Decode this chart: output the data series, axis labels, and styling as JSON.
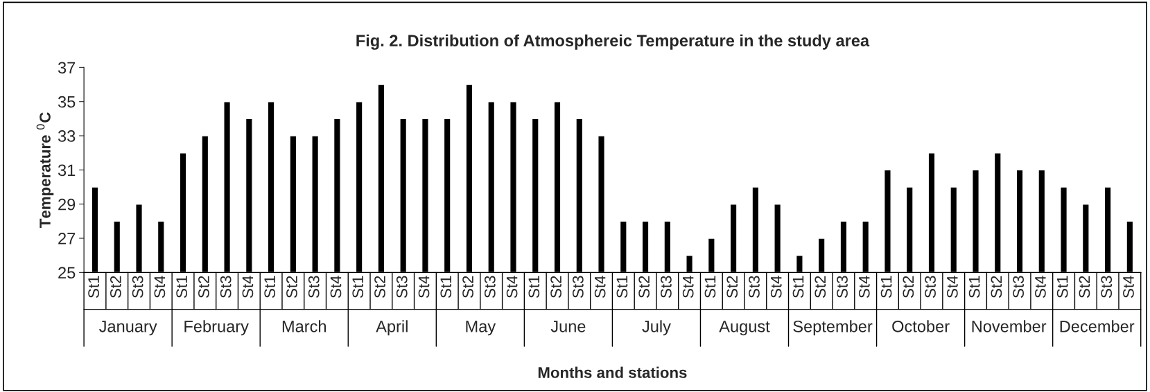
{
  "chart_data": {
    "type": "bar",
    "title": "Fig. 2. Distribution of Atmosphereic Temperature in the study area",
    "xlabel": "Months and stations",
    "ylabel": "Temperature $^{0}$C",
    "categories": [
      "St1",
      "St2",
      "St3",
      "St4",
      "St1",
      "St2",
      "St3",
      "St4",
      "St1",
      "St2",
      "St3",
      "St4",
      "St1",
      "St2",
      "St3",
      "St4",
      "St1",
      "St2",
      "St3",
      "St4",
      "St1",
      "St2",
      "St3",
      "St4",
      "St1",
      "St2",
      "St3",
      "St4",
      "St1",
      "St2",
      "St3",
      "St4",
      "St1",
      "St2",
      "St3",
      "St4",
      "St1",
      "St2",
      "St3",
      "St4",
      "St1",
      "St2",
      "St3",
      "St4",
      "St1",
      "St2",
      "St3",
      "St4"
    ],
    "annotations": [
      "January",
      "February",
      "March",
      "April",
      "May",
      "June",
      "July",
      "August",
      "September",
      "October",
      "November",
      "December"
    ],
    "values": [
      30,
      28,
      29,
      28,
      32,
      33,
      35,
      34,
      35,
      33,
      33,
      34,
      35,
      36,
      34,
      34,
      34,
      36,
      35,
      35,
      34,
      35,
      34,
      33,
      28,
      28,
      28,
      26,
      27,
      29,
      30,
      29,
      26,
      27,
      28,
      28,
      31,
      30,
      32,
      30,
      31,
      32,
      31,
      31,
      30,
      29,
      30,
      28
    ],
    "color": "#000000",
    "ylim": [
      25,
      37
    ],
    "yticks": [
      25,
      27,
      29,
      31,
      33,
      35,
      37
    ],
    "grid": false,
    "legend": false
  }
}
